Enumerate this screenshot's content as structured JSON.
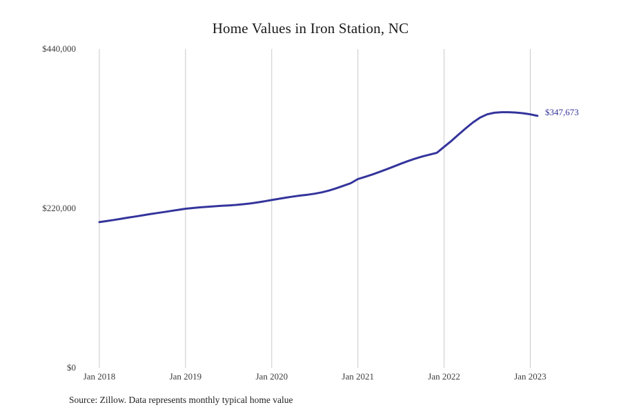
{
  "title": "Home Values in Iron Station, NC",
  "source_note": "Source: Zillow. Data represents monthly typical home value",
  "colors": {
    "line": "#34349c",
    "end_label": "#34349c",
    "gridline": "#c9c9c9",
    "title": "#1a1a1a",
    "axis_label": "#3c3c3c",
    "source": "#222222",
    "background": "#ffffff"
  },
  "chart_data": {
    "type": "line",
    "title": "Home Values in Iron Station, NC",
    "xlabel": "",
    "ylabel": "",
    "ylim": [
      0,
      440000
    ],
    "grid": "vertical-only",
    "legend": "none",
    "y_ticks": [
      0,
      220000,
      440000
    ],
    "y_tick_labels": [
      "$0",
      "$220,000",
      "$440,000"
    ],
    "x_tick_labels": [
      "Jan 2018",
      "Jan 2019",
      "Jan 2020",
      "Jan 2021",
      "Jan 2022",
      "Jan 2023"
    ],
    "series_name": "Monthly typical home value",
    "end_point_label": "$347,673",
    "end_point_value": 347673,
    "x": [
      "Jan 2018",
      "Feb 2018",
      "Mar 2018",
      "Apr 2018",
      "May 2018",
      "Jun 2018",
      "Jul 2018",
      "Aug 2018",
      "Sep 2018",
      "Oct 2018",
      "Nov 2018",
      "Dec 2018",
      "Jan 2019",
      "Feb 2019",
      "Mar 2019",
      "Apr 2019",
      "May 2019",
      "Jun 2019",
      "Jul 2019",
      "Aug 2019",
      "Sep 2019",
      "Oct 2019",
      "Nov 2019",
      "Dec 2019",
      "Jan 2020",
      "Feb 2020",
      "Mar 2020",
      "Apr 2020",
      "May 2020",
      "Jun 2020",
      "Jul 2020",
      "Aug 2020",
      "Sep 2020",
      "Oct 2020",
      "Nov 2020",
      "Dec 2020",
      "Jan 2021",
      "Feb 2021",
      "Mar 2021",
      "Apr 2021",
      "May 2021",
      "Jun 2021",
      "Jul 2021",
      "Aug 2021",
      "Sep 2021",
      "Oct 2021",
      "Nov 2021",
      "Dec 2021",
      "Jan 2022",
      "Feb 2022",
      "Mar 2022",
      "Apr 2022",
      "May 2022",
      "Jun 2022",
      "Jul 2022",
      "Aug 2022",
      "Sep 2022",
      "Oct 2022",
      "Nov 2022",
      "Dec 2022",
      "Jan 2023",
      "Feb 2023"
    ],
    "values": [
      201000,
      202500,
      204000,
      205600,
      207200,
      208800,
      210400,
      212000,
      213500,
      215000,
      216500,
      218000,
      219500,
      220500,
      221400,
      222200,
      222900,
      223500,
      224100,
      224800,
      225700,
      226800,
      228200,
      229800,
      231500,
      233200,
      234900,
      236400,
      237700,
      238900,
      240300,
      242200,
      244700,
      247800,
      251200,
      254800,
      260500,
      263500,
      266800,
      270300,
      274000,
      277800,
      281700,
      285400,
      288800,
      291700,
      294200,
      296800,
      305000,
      313000,
      321800,
      330400,
      338500,
      345200,
      349800,
      352000,
      352800,
      352800,
      352300,
      351300,
      349800,
      347673
    ],
    "values_note": "Values estimated from plot except final labeled point 347673"
  }
}
